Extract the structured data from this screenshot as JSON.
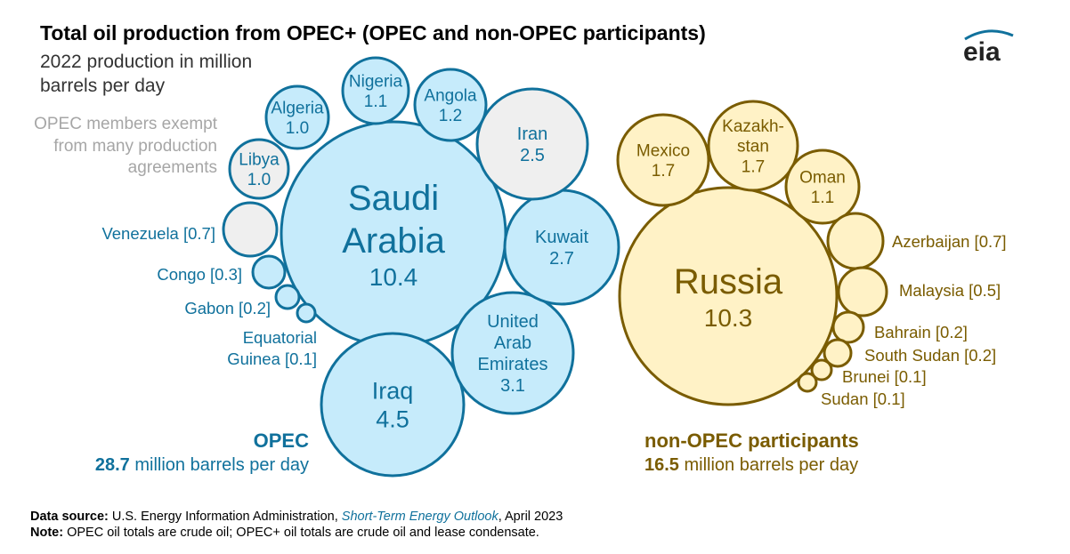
{
  "header": {
    "title": "Total oil production from OPEC+ (OPEC and non-OPEC participants)",
    "subtitle": "2022 production in million barrels per day",
    "exempt_note": "OPEC members exempt from many production agreements",
    "logo_text": "eia"
  },
  "groups": {
    "opec": {
      "name": "OPEC",
      "total": "28.7",
      "unit": "million barrels per day"
    },
    "non_opec": {
      "name": "non-OPEC participants",
      "total": "16.5",
      "unit": "million barrels per day"
    }
  },
  "colors": {
    "opec_fill": "#c6ebfb",
    "opec_stroke": "#10719c",
    "opec_text": "#10719c",
    "exempt_fill": "#efefef",
    "nonopec_fill": "#fff2c6",
    "nonopec_stroke": "#7a5c00",
    "nonopec_text": "#7a5c00"
  },
  "chart_data": {
    "type": "bubble",
    "title": "Total oil production from OPEC+ (OPEC and non-OPEC participants)",
    "subtitle": "2022 production in million barrels per day",
    "bubbles": [
      {
        "name": "Saudi Arabia",
        "value": 10.4,
        "group": "OPEC",
        "exempt": false,
        "label_lines": [
          "Saudi",
          "Arabia",
          "10.4"
        ],
        "label_position": "inside"
      },
      {
        "name": "Iraq",
        "value": 4.5,
        "group": "OPEC",
        "exempt": false,
        "label_lines": [
          "Iraq",
          "4.5"
        ],
        "label_position": "inside"
      },
      {
        "name": "United Arab Emirates",
        "value": 3.1,
        "group": "OPEC",
        "exempt": false,
        "label_lines": [
          "United",
          "Arab",
          "Emirates",
          "3.1"
        ],
        "label_position": "inside"
      },
      {
        "name": "Kuwait",
        "value": 2.7,
        "group": "OPEC",
        "exempt": false,
        "label_lines": [
          "Kuwait",
          "2.7"
        ],
        "label_position": "inside"
      },
      {
        "name": "Iran",
        "value": 2.5,
        "group": "OPEC",
        "exempt": true,
        "label_lines": [
          "Iran",
          "2.5"
        ],
        "label_position": "inside"
      },
      {
        "name": "Angola",
        "value": 1.2,
        "group": "OPEC",
        "exempt": false,
        "label_lines": [
          "Angola",
          "1.2"
        ],
        "label_position": "inside"
      },
      {
        "name": "Nigeria",
        "value": 1.1,
        "group": "OPEC",
        "exempt": false,
        "label_lines": [
          "Nigeria",
          "1.1"
        ],
        "label_position": "inside"
      },
      {
        "name": "Algeria",
        "value": 1.0,
        "group": "OPEC",
        "exempt": false,
        "label_lines": [
          "Algeria",
          "1.0"
        ],
        "label_position": "inside"
      },
      {
        "name": "Libya",
        "value": 1.0,
        "group": "OPEC",
        "exempt": true,
        "label_lines": [
          "Libya",
          "1.0"
        ],
        "label_position": "inside"
      },
      {
        "name": "Venezuela",
        "value": 0.7,
        "group": "OPEC",
        "exempt": true,
        "label_lines": [
          "Venezuela [0.7]"
        ],
        "label_position": "left"
      },
      {
        "name": "Congo",
        "value": 0.3,
        "group": "OPEC",
        "exempt": false,
        "label_lines": [
          "Congo [0.3]"
        ],
        "label_position": "left"
      },
      {
        "name": "Gabon",
        "value": 0.2,
        "group": "OPEC",
        "exempt": false,
        "label_lines": [
          "Gabon [0.2]"
        ],
        "label_position": "left"
      },
      {
        "name": "Equatorial Guinea",
        "value": 0.1,
        "group": "OPEC",
        "exempt": false,
        "label_lines": [
          "Equatorial",
          "Guinea [0.1]"
        ],
        "label_position": "left"
      },
      {
        "name": "Russia",
        "value": 10.3,
        "group": "non-OPEC participants",
        "exempt": false,
        "label_lines": [
          "Russia",
          "10.3"
        ],
        "label_position": "inside"
      },
      {
        "name": "Mexico",
        "value": 1.7,
        "group": "non-OPEC participants",
        "exempt": false,
        "label_lines": [
          "Mexico",
          "1.7"
        ],
        "label_position": "inside"
      },
      {
        "name": "Kazakhstan",
        "value": 1.7,
        "group": "non-OPEC participants",
        "exempt": false,
        "label_lines": [
          "Kazakh-",
          "stan",
          "1.7"
        ],
        "label_position": "inside"
      },
      {
        "name": "Oman",
        "value": 1.1,
        "group": "non-OPEC participants",
        "exempt": false,
        "label_lines": [
          "Oman",
          "1.1"
        ],
        "label_position": "inside"
      },
      {
        "name": "Azerbaijan",
        "value": 0.7,
        "group": "non-OPEC participants",
        "exempt": false,
        "label_lines": [
          "Azerbaijan [0.7]"
        ],
        "label_position": "right"
      },
      {
        "name": "Malaysia",
        "value": 0.5,
        "group": "non-OPEC participants",
        "exempt": false,
        "label_lines": [
          "Malaysia [0.5]"
        ],
        "label_position": "right"
      },
      {
        "name": "Bahrain",
        "value": 0.2,
        "group": "non-OPEC participants",
        "exempt": false,
        "label_lines": [
          "Bahrain [0.2]"
        ],
        "label_position": "right"
      },
      {
        "name": "South Sudan",
        "value": 0.2,
        "group": "non-OPEC participants",
        "exempt": false,
        "label_lines": [
          "South Sudan [0.2]"
        ],
        "label_position": "right"
      },
      {
        "name": "Brunei",
        "value": 0.1,
        "group": "non-OPEC participants",
        "exempt": false,
        "label_lines": [
          "Brunei [0.1]"
        ],
        "label_position": "right"
      },
      {
        "name": "Sudan",
        "value": 0.1,
        "group": "non-OPEC participants",
        "exempt": false,
        "label_lines": [
          "Sudan [0.1]"
        ],
        "label_position": "right"
      }
    ]
  },
  "footer": {
    "source_label": "Data source:",
    "source_text_pre": "U.S. Energy Information Administration,",
    "source_publication": "Short-Term Energy Outlook",
    "source_text_post": ", April 2023",
    "note_label": "Note:",
    "note_text": "OPEC oil totals are crude oil; OPEC+ oil totals are crude oil and lease condensate."
  }
}
